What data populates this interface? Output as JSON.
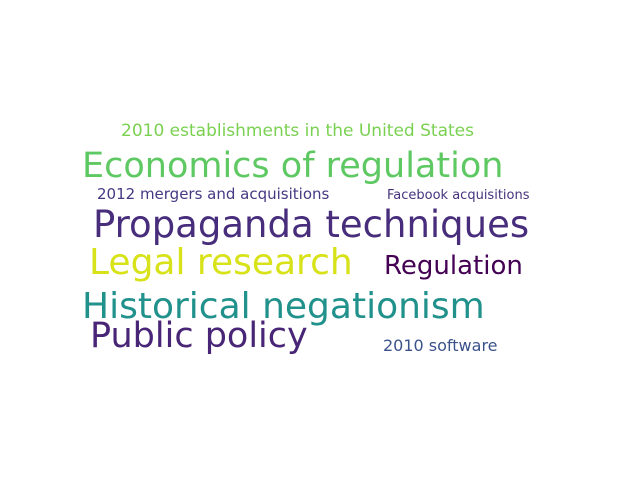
{
  "words": [
    {
      "text": "2010 establishments in the United States",
      "color": "#7ad151"
    },
    {
      "text": "Economics of regulation",
      "color": "#5ec962"
    },
    {
      "text": "2012 mergers and acquisitions",
      "color": "#443983"
    },
    {
      "text": "Facebook acquisitions",
      "color": "#46337e"
    },
    {
      "text": "Propaganda techniques",
      "color": "#472d7b"
    },
    {
      "text": "Legal research",
      "color": "#d8e219"
    },
    {
      "text": "Regulation",
      "color": "#440154"
    },
    {
      "text": "Historical negationism",
      "color": "#21918c"
    },
    {
      "text": "Public policy",
      "color": "#482576"
    },
    {
      "text": "2010 software",
      "color": "#3b528b"
    }
  ]
}
